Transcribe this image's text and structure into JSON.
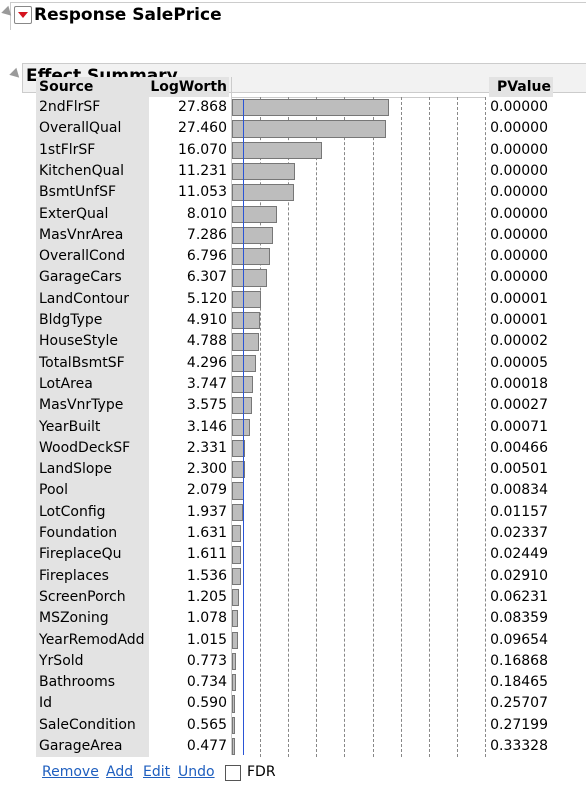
{
  "response_title": "Response SalePrice",
  "section_title": "Effect Summary",
  "columns": {
    "source": "Source",
    "logworth": "LogWorth",
    "pvalue": "PValue"
  },
  "chart_data": {
    "type": "bar",
    "orientation": "horizontal",
    "categories": [
      "2ndFlrSF",
      "OverallQual",
      "1stFlrSF",
      "KitchenQual",
      "BsmtUnfSF",
      "ExterQual",
      "MasVnrArea",
      "OverallCond",
      "GarageCars",
      "LandContour",
      "BldgType",
      "HouseStyle",
      "TotalBsmtSF",
      "LotArea",
      "MasVnrType",
      "YearBuilt",
      "WoodDeckSF",
      "LandSlope",
      "Pool",
      "LotConfig",
      "Foundation",
      "FireplaceQu",
      "Fireplaces",
      "ScreenPorch",
      "MSZoning",
      "YearRemodAdd",
      "YrSold",
      "Bathrooms",
      "Id",
      "SaleCondition",
      "GarageArea"
    ],
    "logworth_labels": [
      "27.868",
      "27.460",
      "16.070",
      "11.231",
      "11.053",
      "8.010",
      "7.286",
      "6.796",
      "6.307",
      "5.120",
      "4.910",
      "4.788",
      "4.296",
      "3.747",
      "3.575",
      "3.146",
      "2.331",
      "2.300",
      "2.079",
      "1.937",
      "1.631",
      "1.611",
      "1.536",
      "1.205",
      "1.078",
      "1.015",
      "0.773",
      "0.734",
      "0.590",
      "0.565",
      "0.477"
    ],
    "values": [
      27.868,
      27.46,
      16.07,
      11.231,
      11.053,
      8.01,
      7.286,
      6.796,
      6.307,
      5.12,
      4.91,
      4.788,
      4.296,
      3.747,
      3.575,
      3.146,
      2.331,
      2.3,
      2.079,
      1.937,
      1.631,
      1.611,
      1.536,
      1.205,
      1.078,
      1.015,
      0.773,
      0.734,
      0.59,
      0.565,
      0.477
    ],
    "pvalues": [
      "0.00000",
      "0.00000",
      "0.00000",
      "0.00000",
      "0.00000",
      "0.00000",
      "0.00000",
      "0.00000",
      "0.00000",
      "0.00001",
      "0.00001",
      "0.00002",
      "0.00005",
      "0.00018",
      "0.00027",
      "0.00071",
      "0.00466",
      "0.00501",
      "0.00834",
      "0.01157",
      "0.02337",
      "0.02449",
      "0.02910",
      "0.06231",
      "0.08359",
      "0.09654",
      "0.16868",
      "0.18465",
      "0.25707",
      "0.27199",
      "0.33328"
    ],
    "xlim": [
      0,
      45
    ],
    "grid_lines": [
      5,
      10,
      15,
      20,
      25,
      30,
      35,
      40,
      45
    ],
    "reference_line": 2
  },
  "footer": {
    "remove": "Remove",
    "add": "Add",
    "edit": "Edit",
    "undo": "Undo",
    "fdr": "FDR"
  },
  "colors": {
    "bar_fill": "#bdbdbd",
    "reference_line": "#2a55d6",
    "link": "#1f5fbf",
    "header_bg": "#e3e3e3"
  }
}
